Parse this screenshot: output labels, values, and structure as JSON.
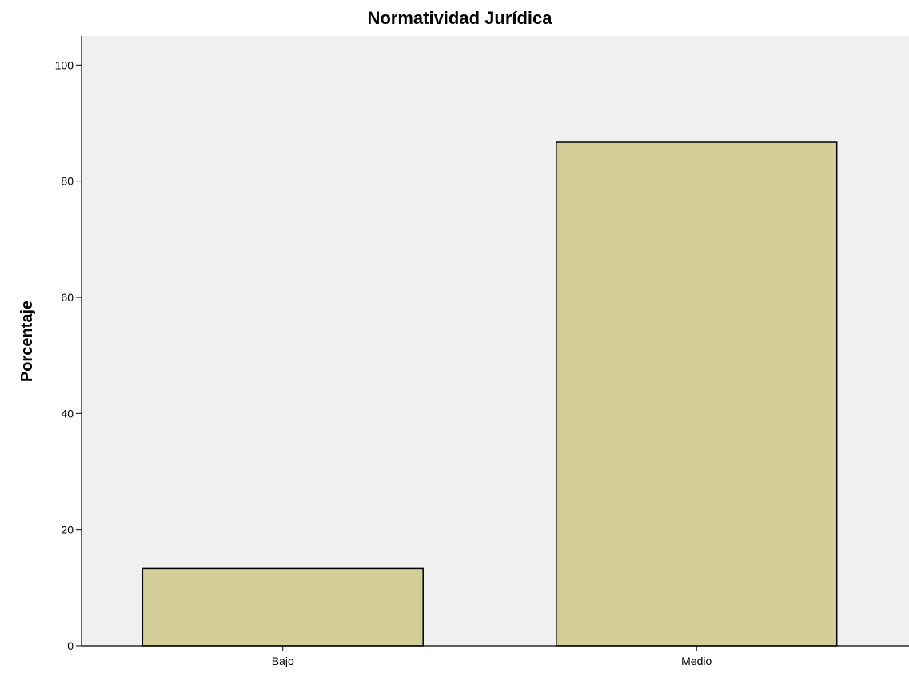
{
  "colors": {
    "plot_background": "#f0f0f0",
    "bar_fill": "#d3ce97",
    "bar_stroke": "#000000",
    "axis": "#000000"
  },
  "chart_data": {
    "type": "bar",
    "title": "Normatividad Jurídica",
    "xlabel": "",
    "ylabel": "Porcentaje",
    "categories": [
      "Bajo",
      "Medio"
    ],
    "values": [
      13.3,
      86.7
    ],
    "ylim": [
      0,
      105
    ],
    "yticks": [
      0,
      20,
      40,
      60,
      80,
      100
    ],
    "ytick_labels": [
      "0",
      "20",
      "40",
      "60",
      "80",
      "100"
    ],
    "grid": false,
    "legend": "none"
  }
}
